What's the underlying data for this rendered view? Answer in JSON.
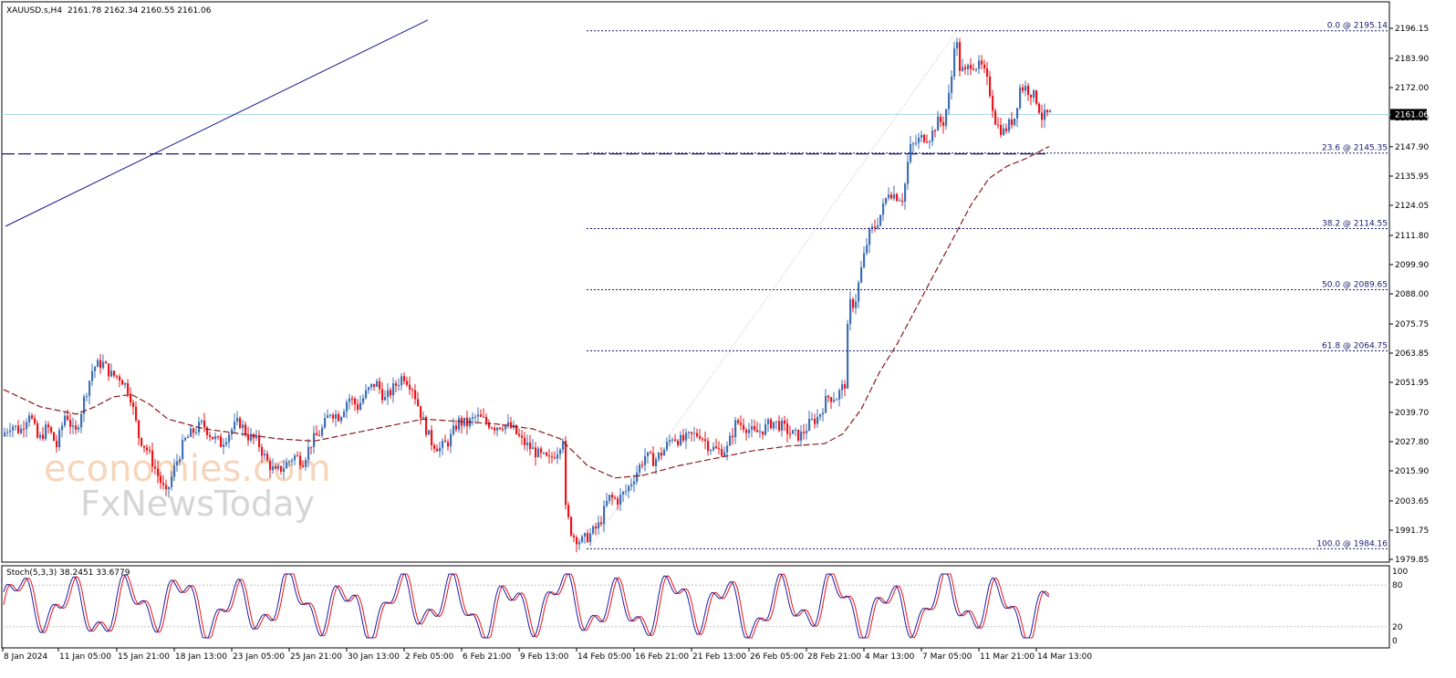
{
  "header": {
    "symbol": "XAUUSD.s,H4",
    "ohlc": "2161.78 2162.34 2160.55 2161.06"
  },
  "watermark": {
    "brand": "economies.com",
    "brand2": "FxNewsToday"
  },
  "chart_data": {
    "type": "candlestick",
    "instrument": "XAUUSD.s",
    "timeframe": "H4",
    "ylim": [
      1979.85,
      2196.15
    ],
    "y_ticks": [
      "2196.15",
      "2183.90",
      "2172.00",
      "2159.80",
      "2147.90",
      "2135.95",
      "2124.05",
      "2111.80",
      "2099.90",
      "2088.00",
      "2075.75",
      "2063.85",
      "2051.95",
      "2039.70",
      "2027.80",
      "2015.90",
      "2003.65",
      "1991.75",
      "1979.85"
    ],
    "x_ticks": [
      "8 Jan 2024",
      "11 Jan 05:00",
      "15 Jan 21:00",
      "18 Jan 13:00",
      "23 Jan 05:00",
      "25 Jan 21:00",
      "30 Jan 13:00",
      "2 Feb 05:00",
      "6 Feb 21:00",
      "9 Feb 13:00",
      "14 Feb 05:00",
      "16 Feb 21:00",
      "21 Feb 13:00",
      "26 Feb 05:00",
      "28 Feb 21:00",
      "4 Mar 13:00",
      "7 Mar 05:00",
      "11 Mar 21:00",
      "14 Mar 13:00"
    ],
    "last_price": "2161.06",
    "price_path": [
      [
        0,
        2030
      ],
      [
        10,
        2035
      ],
      [
        20,
        2032
      ],
      [
        30,
        2040
      ],
      [
        40,
        2028
      ],
      [
        50,
        2034
      ],
      [
        60,
        2026
      ],
      [
        70,
        2040
      ],
      [
        80,
        2030
      ],
      [
        90,
        2045
      ],
      [
        100,
        2058
      ],
      [
        110,
        2060
      ],
      [
        120,
        2055
      ],
      [
        130,
        2054
      ],
      [
        140,
        2048
      ],
      [
        150,
        2030
      ],
      [
        160,
        2024
      ],
      [
        170,
        2015
      ],
      [
        180,
        2006
      ],
      [
        190,
        2018
      ],
      [
        200,
        2028
      ],
      [
        210,
        2032
      ],
      [
        220,
        2035
      ],
      [
        230,
        2030
      ],
      [
        240,
        2027
      ],
      [
        250,
        2032
      ],
      [
        260,
        2036
      ],
      [
        270,
        2030
      ],
      [
        280,
        2028
      ],
      [
        290,
        2020
      ],
      [
        300,
        2015
      ],
      [
        310,
        2018
      ],
      [
        320,
        2022
      ],
      [
        330,
        2020
      ],
      [
        340,
        2028
      ],
      [
        350,
        2032
      ],
      [
        360,
        2040
      ],
      [
        370,
        2038
      ],
      [
        380,
        2046
      ],
      [
        390,
        2042
      ],
      [
        400,
        2048
      ],
      [
        410,
        2052
      ],
      [
        420,
        2045
      ],
      [
        430,
        2050
      ],
      [
        440,
        2055
      ],
      [
        450,
        2050
      ],
      [
        460,
        2038
      ],
      [
        470,
        2028
      ],
      [
        480,
        2025
      ],
      [
        490,
        2028
      ],
      [
        500,
        2036
      ],
      [
        510,
        2035
      ],
      [
        520,
        2038
      ],
      [
        530,
        2036
      ],
      [
        540,
        2034
      ],
      [
        550,
        2035
      ],
      [
        560,
        2033
      ],
      [
        570,
        2028
      ],
      [
        580,
        2025
      ],
      [
        590,
        2022
      ],
      [
        600,
        2020
      ],
      [
        610,
        2025
      ],
      [
        615,
        2030
      ],
      [
        618,
        2000
      ],
      [
        625,
        1990
      ],
      [
        635,
        1987
      ],
      [
        645,
        1990
      ],
      [
        655,
        1994
      ],
      [
        665,
        2005
      ],
      [
        675,
        2004
      ],
      [
        685,
        2008
      ],
      [
        695,
        2015
      ],
      [
        705,
        2022
      ],
      [
        715,
        2020
      ],
      [
        725,
        2024
      ],
      [
        735,
        2030
      ],
      [
        745,
        2028
      ],
      [
        755,
        2030
      ],
      [
        765,
        2031
      ],
      [
        775,
        2026
      ],
      [
        785,
        2024
      ],
      [
        795,
        2025
      ],
      [
        805,
        2036
      ],
      [
        815,
        2034
      ],
      [
        825,
        2031
      ],
      [
        835,
        2033
      ],
      [
        845,
        2036
      ],
      [
        855,
        2034
      ],
      [
        865,
        2031
      ],
      [
        875,
        2030
      ],
      [
        885,
        2035
      ],
      [
        895,
        2038
      ],
      [
        905,
        2046
      ],
      [
        915,
        2046
      ],
      [
        925,
        2052
      ],
      [
        928,
        2084
      ],
      [
        935,
        2084
      ],
      [
        942,
        2098
      ],
      [
        950,
        2112
      ],
      [
        958,
        2116
      ],
      [
        965,
        2122
      ],
      [
        972,
        2130
      ],
      [
        980,
        2128
      ],
      [
        988,
        2127
      ],
      [
        995,
        2147
      ],
      [
        1003,
        2150
      ],
      [
        1010,
        2152
      ],
      [
        1018,
        2152
      ],
      [
        1025,
        2158
      ],
      [
        1032,
        2158
      ],
      [
        1040,
        2172
      ],
      [
        1045,
        2195
      ],
      [
        1050,
        2180
      ],
      [
        1056,
        2178
      ],
      [
        1062,
        2182
      ],
      [
        1068,
        2181
      ],
      [
        1075,
        2180
      ],
      [
        1082,
        2172
      ],
      [
        1090,
        2157
      ],
      [
        1098,
        2154
      ],
      [
        1104,
        2157
      ],
      [
        1110,
        2160
      ],
      [
        1116,
        2172
      ],
      [
        1122,
        2172
      ],
      [
        1128,
        2170
      ],
      [
        1134,
        2167
      ],
      [
        1140,
        2160
      ],
      [
        1146,
        2161
      ]
    ],
    "moving_average": [
      [
        0,
        2049
      ],
      [
        40,
        2042
      ],
      [
        80,
        2039
      ],
      [
        100,
        2042
      ],
      [
        120,
        2046
      ],
      [
        140,
        2047
      ],
      [
        160,
        2043
      ],
      [
        180,
        2037
      ],
      [
        220,
        2033
      ],
      [
        260,
        2031
      ],
      [
        300,
        2029
      ],
      [
        340,
        2028
      ],
      [
        380,
        2031
      ],
      [
        420,
        2034
      ],
      [
        460,
        2037
      ],
      [
        500,
        2036
      ],
      [
        540,
        2035
      ],
      [
        580,
        2033
      ],
      [
        610,
        2029
      ],
      [
        640,
        2018
      ],
      [
        670,
        2013
      ],
      [
        700,
        2014
      ],
      [
        740,
        2018
      ],
      [
        780,
        2021
      ],
      [
        820,
        2024
      ],
      [
        860,
        2026
      ],
      [
        900,
        2027
      ],
      [
        920,
        2031
      ],
      [
        940,
        2041
      ],
      [
        960,
        2056
      ],
      [
        980,
        2068
      ],
      [
        1000,
        2082
      ],
      [
        1020,
        2096
      ],
      [
        1040,
        2110
      ],
      [
        1060,
        2124
      ],
      [
        1080,
        2135
      ],
      [
        1100,
        2140
      ],
      [
        1120,
        2143
      ],
      [
        1146,
        2148
      ]
    ],
    "fibonacci": {
      "levels": [
        {
          "label": "0.0 @ 2195.14",
          "price": 2195.14
        },
        {
          "label": "23.6 @ 2145.35",
          "price": 2145.35
        },
        {
          "label": "38.2 @ 2114.55",
          "price": 2114.55
        },
        {
          "label": "50.0 @ 2089.65",
          "price": 2089.65
        },
        {
          "label": "61.8 @ 2064.75",
          "price": 2064.75
        },
        {
          "label": "100.0 @ 1984.16",
          "price": 1984.16
        }
      ]
    },
    "horizontal_line": 2145.0,
    "trendline": [
      [
        2,
        2115.5
      ],
      [
        465,
        2199.5
      ]
    ],
    "colors": {
      "up": "#3f6fb4",
      "down": "#e8141a",
      "ma": "#8b1a1a",
      "fib": "#1a1a6e",
      "last_price_line": "#a9d5ea"
    }
  },
  "stochastic": {
    "label": "Stoch(5,3,3) 38.2451 33.6779",
    "levels": [
      "100",
      "80",
      "20",
      "0"
    ],
    "colors": {
      "main": "#1d1d9c",
      "signal": "#e8141a"
    }
  }
}
